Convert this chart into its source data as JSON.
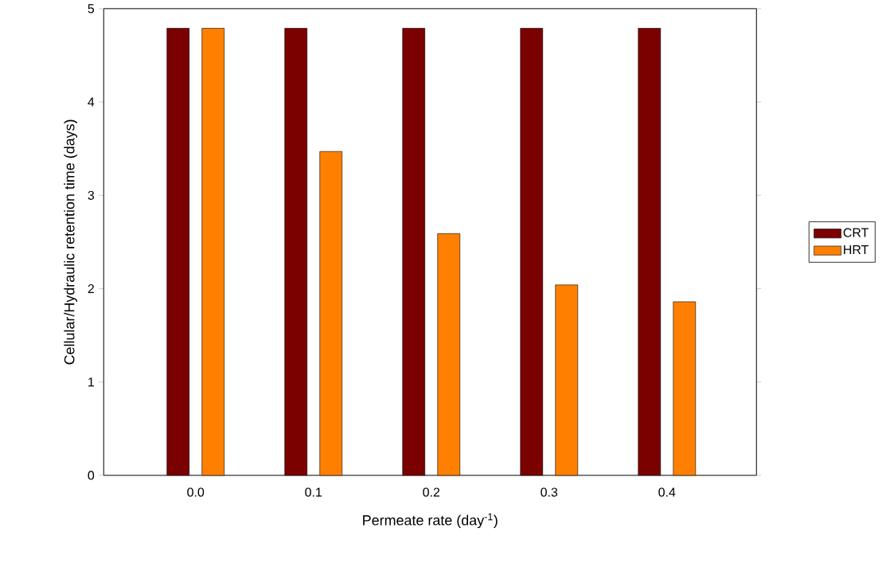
{
  "chart_data": {
    "type": "bar",
    "xlabel": "Permeate rate (day$^{-1}$)",
    "ylabel": "Cellular/Hydraulic retention time (days)",
    "categories": [
      "0.0",
      "0.1",
      "0.2",
      "0.3",
      "0.4"
    ],
    "series": [
      {
        "name": "CRT",
        "color": "#7b0000",
        "values": [
          4.79,
          4.79,
          4.79,
          4.79,
          4.79
        ]
      },
      {
        "name": "HRT",
        "color": "#ff8000",
        "values": [
          4.79,
          3.47,
          2.59,
          2.04,
          1.86
        ]
      }
    ],
    "ylim": [
      0,
      5
    ],
    "yticks": [
      0,
      1,
      2,
      3,
      4,
      5
    ],
    "grid": false,
    "legend": "right"
  }
}
